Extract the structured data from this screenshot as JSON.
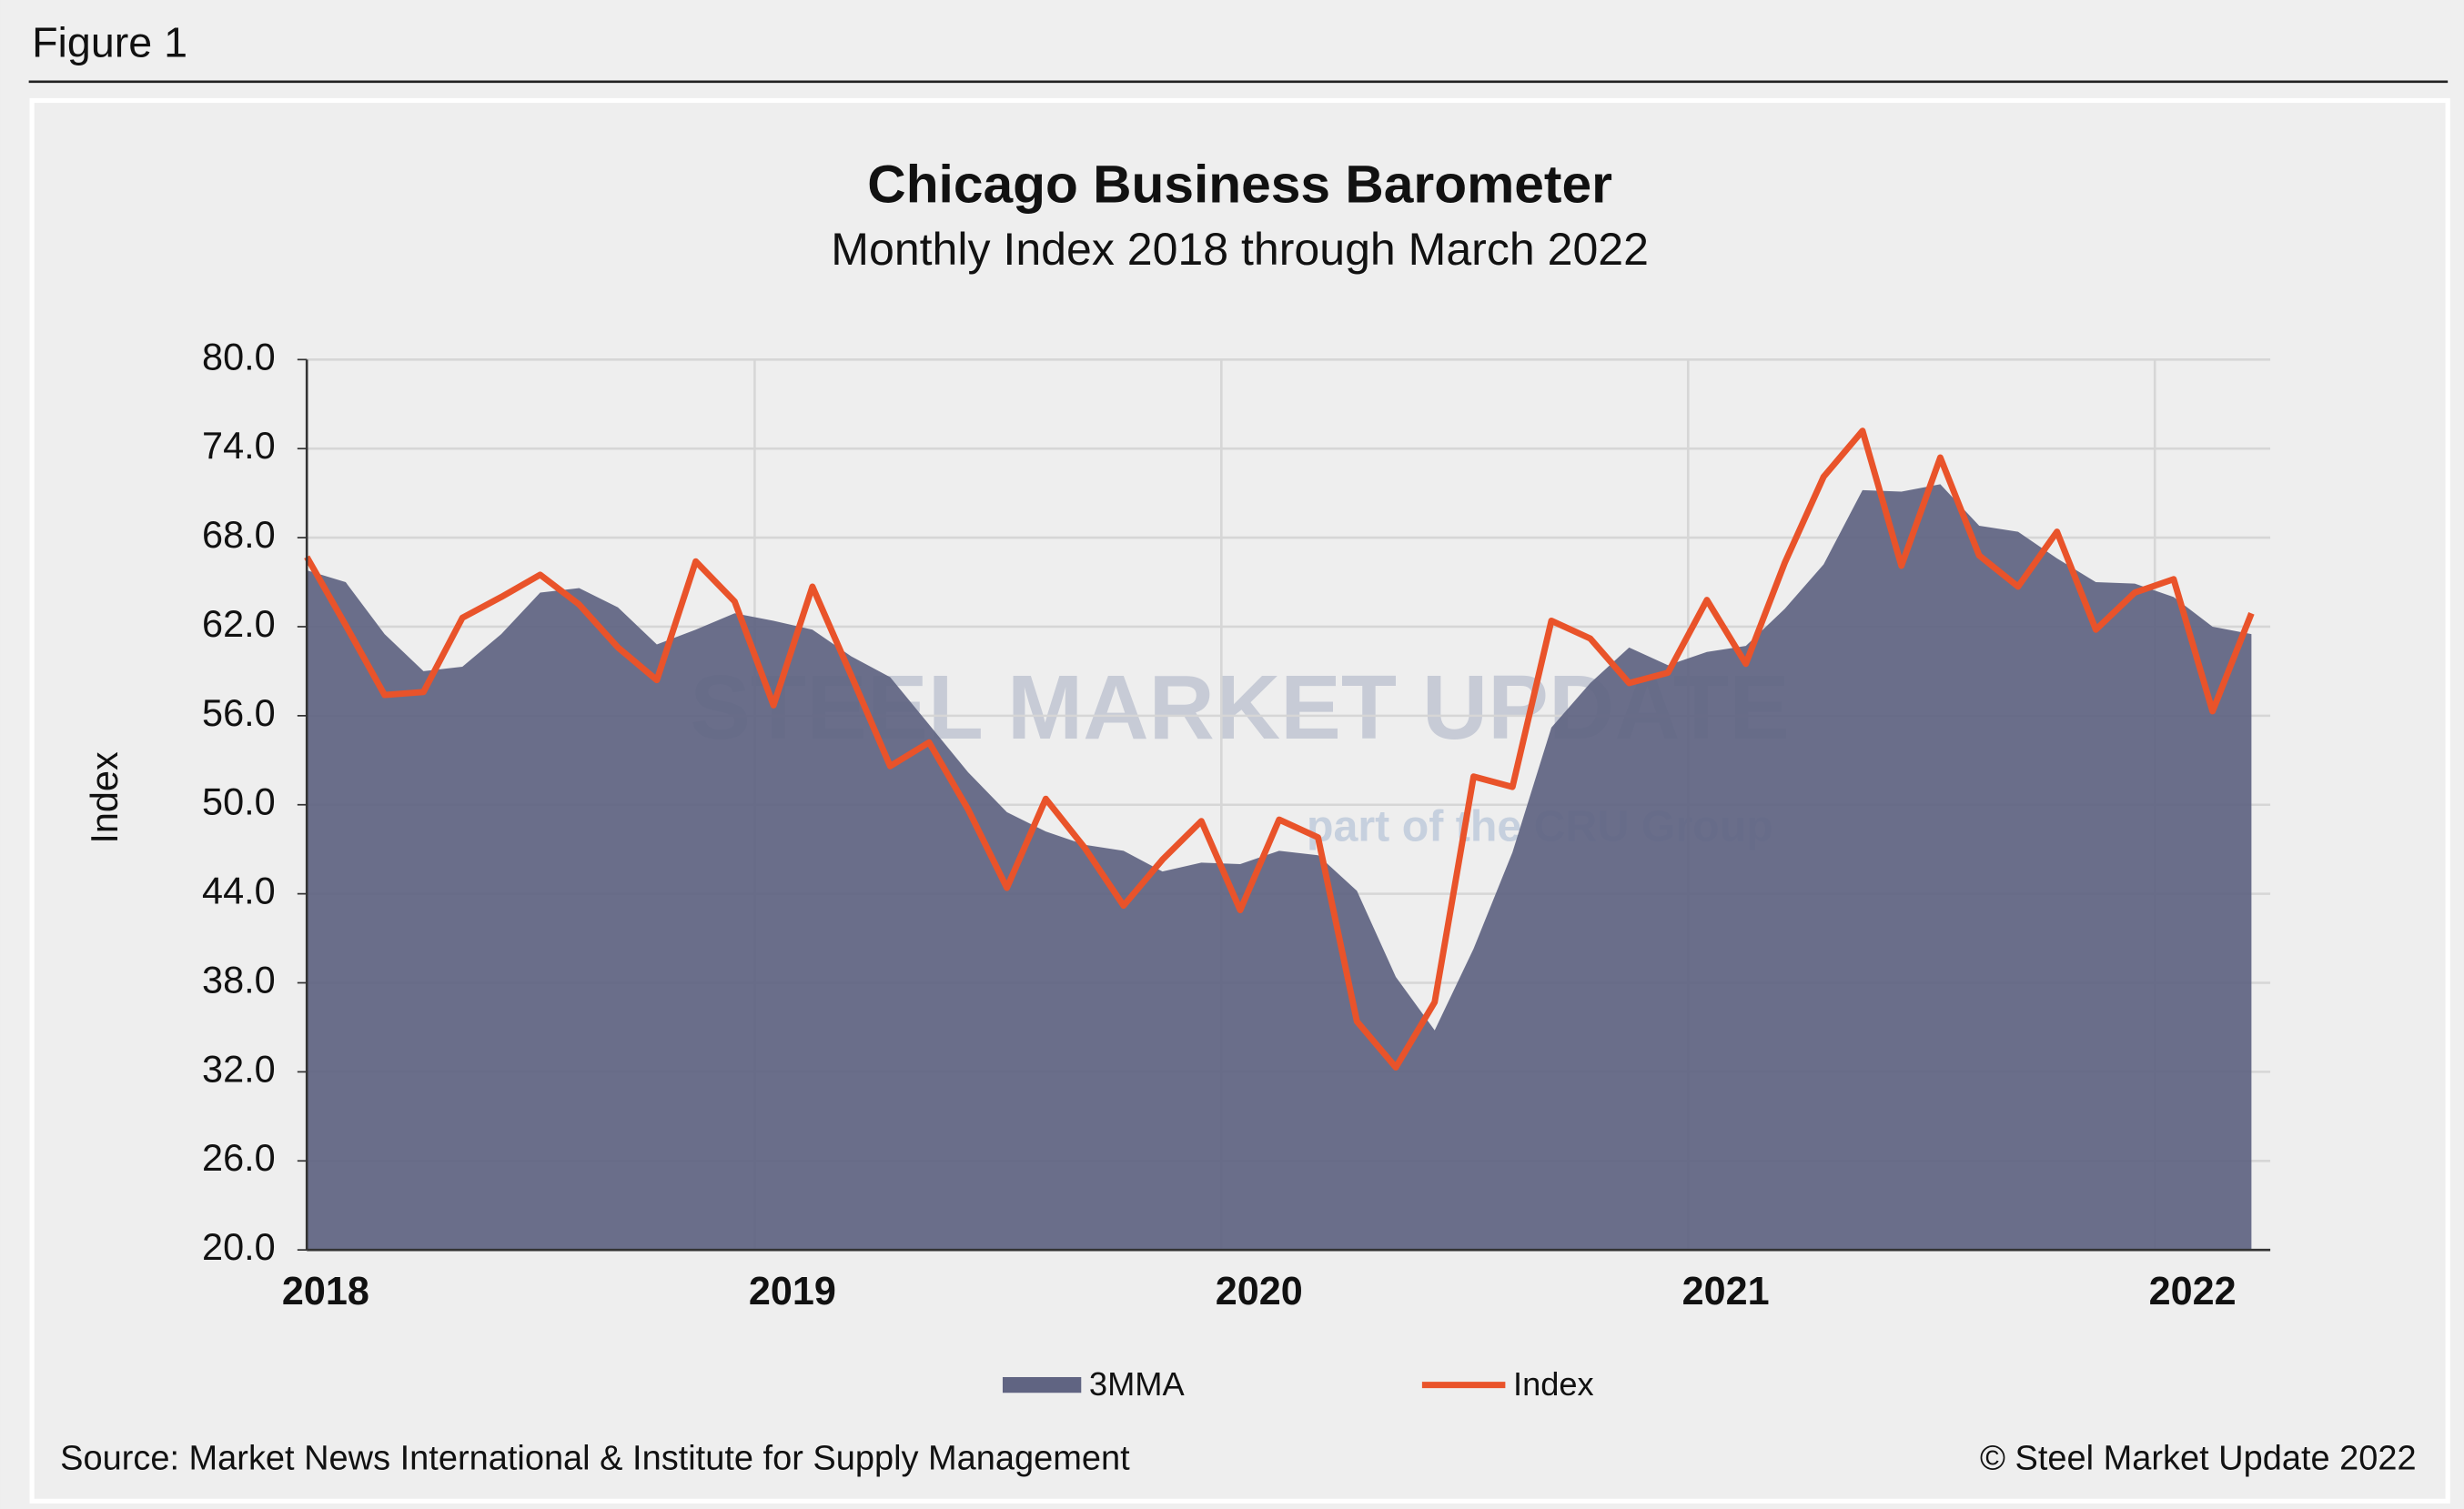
{
  "figure_label": "Figure 1",
  "chart_data": {
    "type": "area_line",
    "title": "Chicago Business Barometer",
    "subtitle": "Monthly Index 2018 through March 2022",
    "y_label": "Index",
    "watermark": "STEEL MARKET UPDATE",
    "watermark_sub": "part of the CRU Group",
    "categories": [
      "2018",
      null,
      null,
      null,
      null,
      null,
      null,
      null,
      null,
      null,
      null,
      null,
      "2019",
      null,
      null,
      null,
      null,
      null,
      null,
      null,
      null,
      null,
      null,
      null,
      "2020",
      null,
      null,
      null,
      null,
      null,
      null,
      null,
      null,
      null,
      null,
      null,
      "2021",
      null,
      null,
      null,
      null,
      null,
      null,
      null,
      null,
      null,
      null,
      null,
      "2022",
      null,
      null
    ],
    "series": [
      {
        "name": "3MMA",
        "kind": "area",
        "color": "#606482",
        "values": [
          65.8,
          65.0,
          61.5,
          59.0,
          59.3,
          61.5,
          64.3,
          64.6,
          63.3,
          60.8,
          61.8,
          62.9,
          62.4,
          61.8,
          60.0,
          58.6,
          55.4,
          52.2,
          49.5,
          48.2,
          47.3,
          46.9,
          45.5,
          46.1,
          46.0,
          46.9,
          46.6,
          44.2,
          38.4,
          34.8,
          40.3,
          46.8,
          55.2,
          58.2,
          60.6,
          59.4,
          60.3,
          60.7,
          63.2,
          66.2,
          71.2,
          71.1,
          71.6,
          68.8,
          68.4,
          66.6,
          65.0,
          64.9,
          64.0,
          62.0,
          61.5
        ]
      },
      {
        "name": "Index",
        "kind": "line",
        "color": "#e9532a",
        "values": [
          66.7,
          62.1,
          57.4,
          57.6,
          62.6,
          64.0,
          65.5,
          63.5,
          60.6,
          58.4,
          66.4,
          63.7,
          56.7,
          64.7,
          58.7,
          52.6,
          54.2,
          49.7,
          44.4,
          50.4,
          47.1,
          43.2,
          46.3,
          48.9,
          42.9,
          49.0,
          47.8,
          35.4,
          32.3,
          36.7,
          51.9,
          51.2,
          62.4,
          61.2,
          58.2,
          58.9,
          63.8,
          59.5,
          66.3,
          72.1,
          75.2,
          66.1,
          73.4,
          66.8,
          64.7,
          68.4,
          61.8,
          64.3,
          65.2,
          56.3,
          62.9
        ]
      }
    ],
    "ylim": [
      20,
      80
    ],
    "yticks": [
      {
        "value": 20,
        "label": "20.0"
      },
      {
        "value": 26,
        "label": "26.0"
      },
      {
        "value": 32,
        "label": "32.0"
      },
      {
        "value": 38,
        "label": "38.0"
      },
      {
        "value": 44,
        "label": "44.0"
      },
      {
        "value": 50,
        "label": "50.0"
      },
      {
        "value": 56,
        "label": "56.0"
      },
      {
        "value": 62,
        "label": "62.0"
      },
      {
        "value": 68,
        "label": "68.0"
      },
      {
        "value": 74,
        "label": "74.0"
      },
      {
        "value": 80,
        "label": "80.0"
      }
    ],
    "grid": true,
    "legend": "bottom",
    "source": "Source: Market News International & Institute for Supply Management",
    "copyright": "© Steel Market Update 2022"
  }
}
